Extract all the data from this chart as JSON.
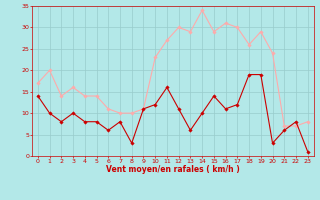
{
  "hours": [
    0,
    1,
    2,
    3,
    4,
    5,
    6,
    7,
    8,
    9,
    10,
    11,
    12,
    13,
    14,
    15,
    16,
    17,
    18,
    19,
    20,
    21,
    22,
    23
  ],
  "wind_avg": [
    14,
    10,
    8,
    10,
    8,
    8,
    6,
    8,
    3,
    11,
    12,
    16,
    11,
    6,
    10,
    14,
    11,
    12,
    19,
    19,
    3,
    6,
    8,
    1
  ],
  "wind_gust": [
    17,
    20,
    14,
    16,
    14,
    14,
    11,
    10,
    10,
    11,
    23,
    27,
    30,
    29,
    34,
    29,
    31,
    30,
    26,
    29,
    24,
    7,
    7,
    8
  ],
  "avg_color": "#cc0000",
  "gust_color": "#ffaaaa",
  "bg_color": "#b3e8e8",
  "grid_color": "#99cccc",
  "xlabel": "Vent moyen/en rafales ( km/h )",
  "ylim": [
    0,
    35
  ],
  "yticks": [
    0,
    5,
    10,
    15,
    20,
    25,
    30,
    35
  ],
  "figsize": [
    3.2,
    2.0
  ],
  "dpi": 100
}
